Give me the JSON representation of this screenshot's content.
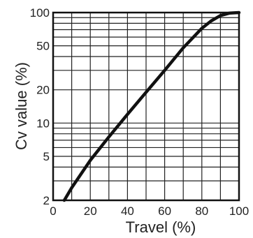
{
  "chart_data": {
    "type": "line",
    "title": "",
    "xlabel": "Travel (%)",
    "ylabel": "Cv value (%)",
    "xlim": [
      0,
      100
    ],
    "ylim": [
      2,
      100
    ],
    "yscale": "log",
    "grid": true,
    "x_ticks": [
      0,
      20,
      40,
      60,
      80,
      100
    ],
    "x_tick_labels": [
      "0",
      "20",
      "40",
      "60",
      "80",
      "100"
    ],
    "y_ticks": [
      2,
      5,
      10,
      20,
      50,
      100
    ],
    "y_tick_labels": [
      "2",
      "5",
      "10",
      "20",
      "50",
      "100"
    ],
    "x_grid": [
      0,
      10,
      20,
      30,
      40,
      50,
      60,
      70,
      80,
      90,
      100
    ],
    "y_grid": [
      2,
      3,
      4,
      5,
      6,
      7,
      8,
      9,
      10,
      20,
      30,
      40,
      50,
      60,
      70,
      80,
      90,
      100
    ],
    "series": [
      {
        "x": [
          6,
          10,
          20,
          30,
          40,
          50,
          60,
          70,
          80,
          85,
          90,
          95,
          100
        ],
        "y": [
          2,
          2.6,
          4.6,
          7.5,
          12,
          19,
          30,
          48,
          72,
          84,
          94,
          99,
          100
        ],
        "color": "#111111"
      }
    ]
  }
}
